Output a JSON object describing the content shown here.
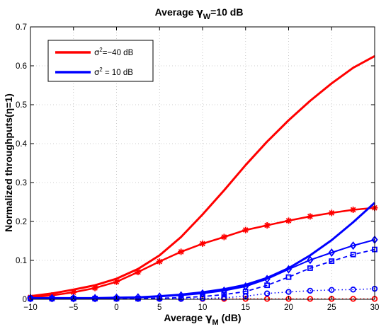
{
  "chart_data": {
    "type": "line",
    "title": {
      "base": "Average ",
      "sym": "γ",
      "sub": "W",
      "rest": "=10 dB"
    },
    "xlabel": {
      "base": "Average ",
      "sym": "γ",
      "sub": "M",
      "rest": " (dB)"
    },
    "ylabel": "Normalized throughputs(η=1)",
    "xlim": [
      -10,
      30
    ],
    "ylim": [
      0,
      0.7
    ],
    "xticks": [
      -10,
      -5,
      0,
      5,
      10,
      15,
      20,
      25,
      30
    ],
    "yticks": [
      0,
      0.1,
      0.2,
      0.3,
      0.4,
      0.5,
      0.6,
      0.7
    ],
    "grid": true,
    "legend": {
      "placement": "top-left",
      "entries": [
        {
          "sym": "σ",
          "sup": "2",
          "rest": "=−40 dB",
          "color": "#ff0000"
        },
        {
          "sym": "σ",
          "sup": "2",
          "rest": " = 10 dB",
          "color": "#0000ff"
        }
      ]
    },
    "series": [
      {
        "color": "#ff0000",
        "dash": "solid",
        "width": 3.0,
        "marker": "none",
        "x": [
          -10,
          -7.5,
          -5,
          -2.5,
          0,
          2.5,
          5,
          7.5,
          10,
          12.5,
          15,
          17.5,
          20,
          22.5,
          25,
          27.5,
          30
        ],
        "y": [
          0.008,
          0.015,
          0.025,
          0.036,
          0.053,
          0.078,
          0.113,
          0.16,
          0.218,
          0.28,
          0.345,
          0.405,
          0.46,
          0.51,
          0.555,
          0.595,
          0.625
        ]
      },
      {
        "color": "#ff0000",
        "dash": "solid",
        "width": 2.5,
        "marker": "star",
        "x": [
          -10,
          -7.5,
          -5,
          -2.5,
          0,
          2.5,
          5,
          7.5,
          10,
          12.5,
          15,
          17.5,
          20,
          22.5,
          25,
          27.5,
          30
        ],
        "y": [
          0.005,
          0.01,
          0.018,
          0.029,
          0.045,
          0.07,
          0.097,
          0.122,
          0.143,
          0.16,
          0.178,
          0.19,
          0.202,
          0.213,
          0.222,
          0.23,
          0.235
        ]
      },
      {
        "color": "#ff0000",
        "dash": "dotted",
        "width": 1.5,
        "marker": "circle",
        "x": [
          -10,
          -7.5,
          -5,
          -2.5,
          0,
          2.5,
          5,
          7.5,
          10,
          12.5,
          15,
          17.5,
          20,
          22.5,
          25,
          27.5,
          30
        ],
        "y": [
          0.001,
          0.001,
          0.001,
          0.001,
          0.001,
          0.001,
          0.001,
          0.001,
          0.001,
          0.001,
          0.001,
          0.001,
          0.001,
          0.001,
          0.001,
          0.001,
          0.001
        ]
      },
      {
        "color": "#0000ff",
        "dash": "solid",
        "width": 3.0,
        "marker": "none",
        "x": [
          -10,
          -7.5,
          -5,
          -2.5,
          0,
          2.5,
          5,
          7.5,
          10,
          12.5,
          15,
          17.5,
          20,
          22.5,
          25,
          27.5,
          30
        ],
        "y": [
          0.003,
          0.003,
          0.003,
          0.003,
          0.004,
          0.005,
          0.008,
          0.012,
          0.018,
          0.026,
          0.037,
          0.055,
          0.08,
          0.113,
          0.152,
          0.198,
          0.248
        ]
      },
      {
        "color": "#0000ff",
        "dash": "solid",
        "width": 2.0,
        "marker": "diamond",
        "x": [
          -10,
          -7.5,
          -5,
          -2.5,
          0,
          2.5,
          5,
          7.5,
          10,
          12.5,
          15,
          17.5,
          20,
          22.5,
          25,
          27.5,
          30
        ],
        "y": [
          0.003,
          0.003,
          0.003,
          0.003,
          0.004,
          0.005,
          0.007,
          0.01,
          0.015,
          0.022,
          0.033,
          0.052,
          0.077,
          0.101,
          0.12,
          0.138,
          0.153
        ]
      },
      {
        "color": "#0000ff",
        "dash": "dashed",
        "width": 1.8,
        "marker": "square",
        "x": [
          -10,
          -7.5,
          -5,
          -2.5,
          0,
          2.5,
          5,
          7.5,
          10,
          12.5,
          15,
          17.5,
          20,
          22.5,
          25,
          27.5,
          30
        ],
        "y": [
          0.002,
          0.002,
          0.002,
          0.002,
          0.002,
          0.002,
          0.003,
          0.004,
          0.007,
          0.012,
          0.02,
          0.036,
          0.057,
          0.08,
          0.098,
          0.115,
          0.128
        ]
      },
      {
        "color": "#0000ff",
        "dash": "dotted",
        "width": 1.5,
        "marker": "circle",
        "x": [
          -10,
          -7.5,
          -5,
          -2.5,
          0,
          2.5,
          5,
          7.5,
          10,
          12.5,
          15,
          17.5,
          20,
          22.5,
          25,
          27.5,
          30
        ],
        "y": [
          0.001,
          0.001,
          0.001,
          0.001,
          0.001,
          0.001,
          0.001,
          0.001,
          0.002,
          0.004,
          0.008,
          0.015,
          0.019,
          0.022,
          0.024,
          0.025,
          0.027
        ]
      }
    ]
  }
}
